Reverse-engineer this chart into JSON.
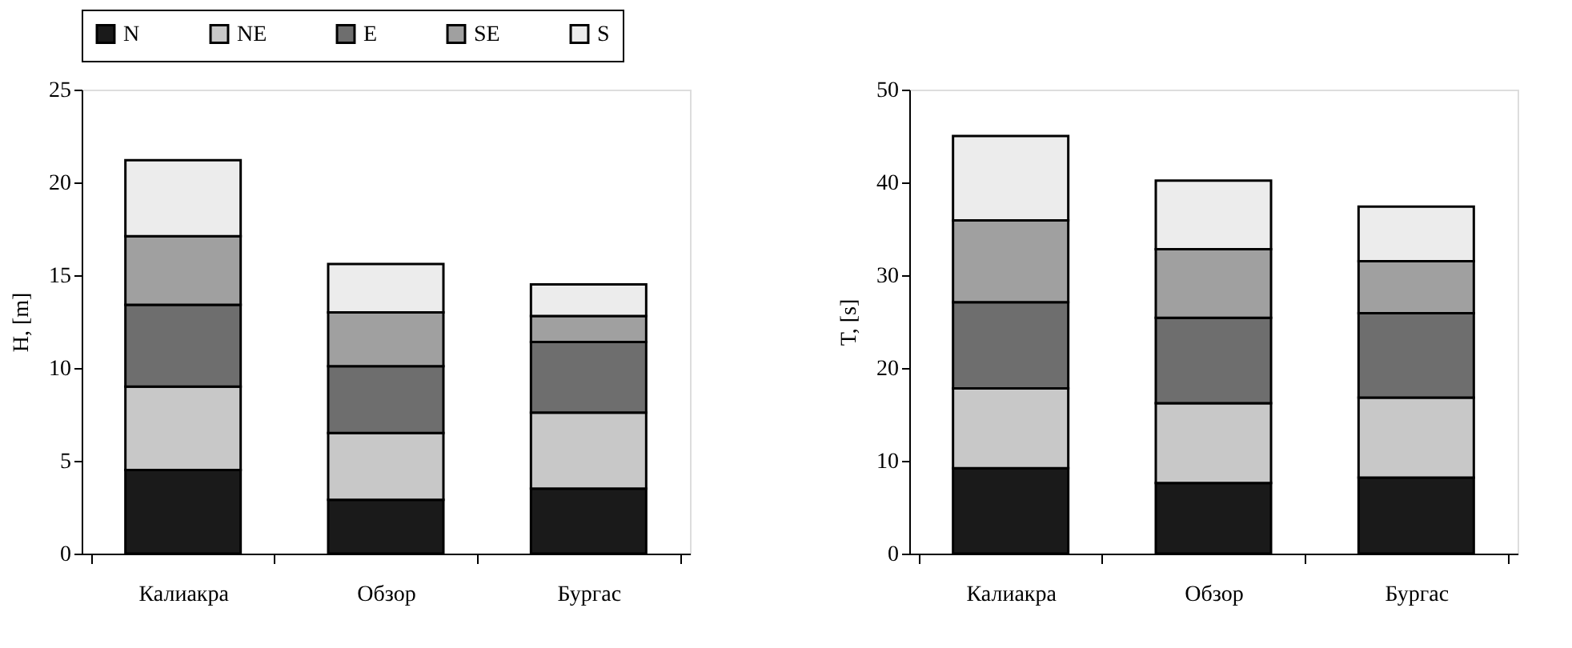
{
  "chart_data": [
    {
      "type": "bar",
      "stacked": true,
      "ylabel": "H, [m]",
      "categories": [
        "Калиакра",
        "Обзор",
        "Бургас"
      ],
      "ylim": [
        0,
        25
      ],
      "yticks": [
        0,
        5,
        10,
        15,
        20,
        25
      ],
      "grid": false,
      "legend": "top",
      "series": [
        {
          "name": "N",
          "color": "#1a1a1a",
          "values": [
            4.5,
            2.9,
            3.5
          ]
        },
        {
          "name": "NE",
          "color": "#c8c8c8",
          "values": [
            4.5,
            3.6,
            4.1
          ]
        },
        {
          "name": "E",
          "color": "#6e6e6e",
          "values": [
            4.4,
            3.6,
            3.8
          ]
        },
        {
          "name": "SE",
          "color": "#a0a0a0",
          "values": [
            3.7,
            2.9,
            1.4
          ]
        },
        {
          "name": "S",
          "color": "#ececec",
          "values": [
            4.1,
            2.6,
            1.7
          ]
        }
      ]
    },
    {
      "type": "bar",
      "stacked": true,
      "ylabel": "T, [s]",
      "categories": [
        "Калиакра",
        "Обзор",
        "Бургас"
      ],
      "ylim": [
        0,
        50
      ],
      "yticks": [
        0,
        10,
        20,
        30,
        40,
        50
      ],
      "grid": false,
      "legend": false,
      "series": [
        {
          "color": "#1a1a1a",
          "values": [
            9.2,
            7.6,
            8.2
          ]
        },
        {
          "color": "#c8c8c8",
          "values": [
            8.6,
            8.6,
            8.6
          ]
        },
        {
          "color": "#6e6e6e",
          "values": [
            9.3,
            9.2,
            9.1
          ]
        },
        {
          "color": "#a0a0a0",
          "values": [
            8.8,
            7.4,
            5.6
          ]
        },
        {
          "color": "#ececec",
          "values": [
            9.1,
            7.4,
            5.9
          ]
        }
      ]
    }
  ]
}
